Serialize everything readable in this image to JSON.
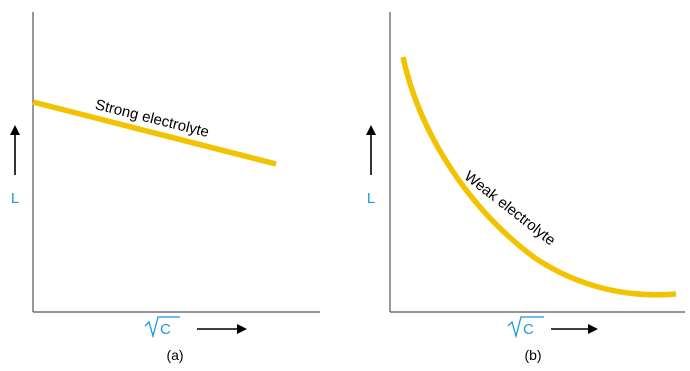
{
  "colors": {
    "curve": "#F2C300",
    "axis_label": "#1E9BD7",
    "axis": "#555555",
    "text": "#000000"
  },
  "panels": [
    {
      "id": "a",
      "y_axis_label": "L",
      "x_axis_label": "C",
      "x_axis_radical": "√",
      "caption": "(a)",
      "curve_label": "Strong electrolyte",
      "curve_shape": "straight line, slowly decreasing"
    },
    {
      "id": "b",
      "y_axis_label": "L",
      "x_axis_label": "C",
      "x_axis_radical": "√",
      "caption": "(b)",
      "curve_label": "Weak electrolyte",
      "curve_shape": "steep decaying curve, flattening out"
    }
  ]
}
